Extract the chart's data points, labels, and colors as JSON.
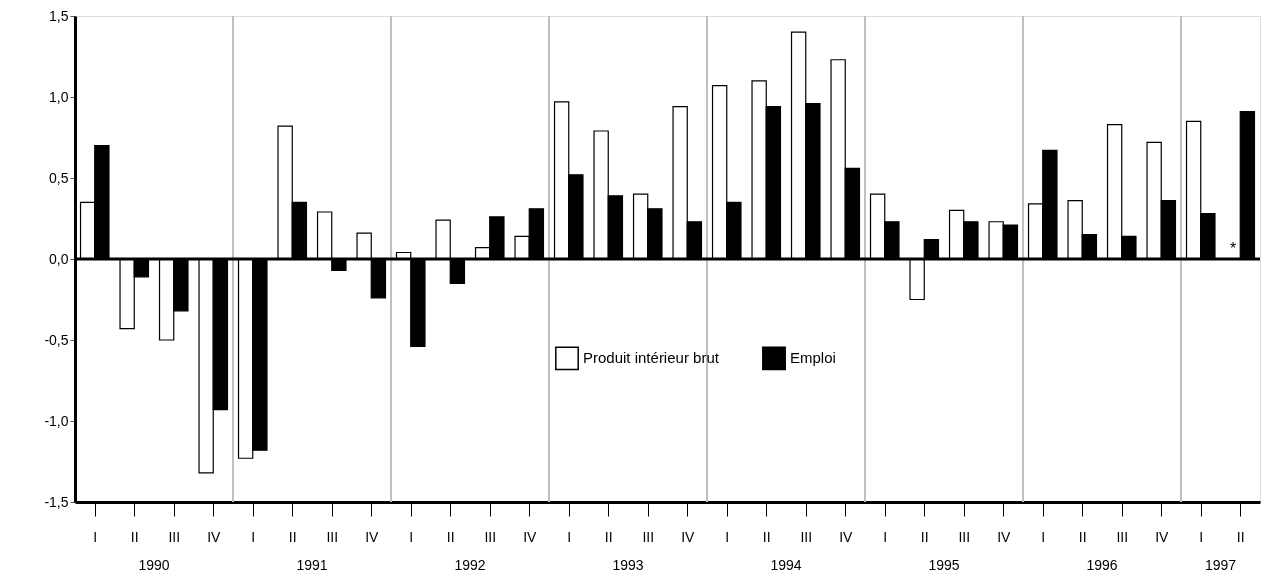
{
  "chart_data": {
    "type": "bar",
    "categories": [
      "I",
      "II",
      "III",
      "IV",
      "I",
      "II",
      "III",
      "IV",
      "I",
      "II",
      "III",
      "IV",
      "I",
      "II",
      "III",
      "IV",
      "I",
      "II",
      "III",
      "IV",
      "I",
      "II",
      "III",
      "IV",
      "I",
      "II",
      "III",
      "IV",
      "I",
      "II"
    ],
    "series": [
      {
        "name": "Produit intérieur brut",
        "color": "#ffffff",
        "values": [
          0.35,
          -0.43,
          -0.5,
          -1.32,
          -1.23,
          0.82,
          0.29,
          0.16,
          0.04,
          0.24,
          0.07,
          0.14,
          0.97,
          0.79,
          0.4,
          0.94,
          1.07,
          1.1,
          1.4,
          1.23,
          0.4,
          -0.25,
          0.3,
          0.23,
          0.34,
          0.36,
          0.83,
          0.72,
          0.85,
          null
        ]
      },
      {
        "name": "Emploi",
        "color": "#000000",
        "values": [
          0.7,
          -0.11,
          -0.32,
          -0.93,
          -1.18,
          0.35,
          -0.07,
          -0.24,
          -0.54,
          -0.15,
          0.26,
          0.31,
          0.52,
          0.39,
          0.31,
          0.23,
          0.35,
          0.94,
          0.96,
          0.56,
          0.23,
          0.12,
          0.23,
          0.21,
          0.67,
          0.15,
          0.14,
          0.36,
          0.28,
          0.91
        ]
      }
    ],
    "ylim": [
      -1.5,
      1.5
    ],
    "yticks": [
      {
        "value": -1.5,
        "label": "-1,5"
      },
      {
        "value": -1.0,
        "label": "-1,0"
      },
      {
        "value": -0.5,
        "label": "-0,5"
      },
      {
        "value": 0,
        "label": "0,0"
      },
      {
        "value": 0.5,
        "label": "0,5"
      },
      {
        "value": 1.0,
        "label": "1,0"
      },
      {
        "value": 1.5,
        "label": "1,5"
      }
    ],
    "ref_lines": [
      {
        "axis": "y",
        "value": 0,
        "color": "#000000"
      }
    ],
    "annotations": [
      "1990",
      "1991",
      "1992",
      "1993",
      "1994",
      "1995",
      "1996",
      "1997",
      "*"
    ],
    "legend": "bottom",
    "grid": false
  }
}
